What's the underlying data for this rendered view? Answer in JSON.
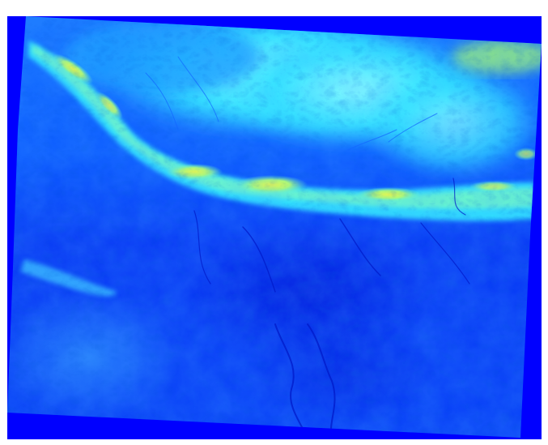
{
  "map": {
    "kind": "elevation-raster",
    "colormap": [
      "#0000ff",
      "#0066ff",
      "#00ccff",
      "#00ffff",
      "#ffff00"
    ],
    "nodata_color": "#0000ff",
    "background_color": "#ffffff"
  }
}
